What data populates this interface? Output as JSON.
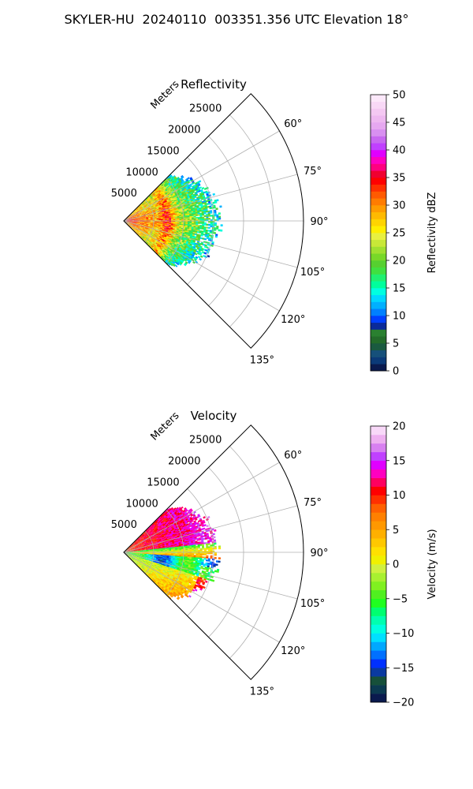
{
  "figure_title": "SKYLER-HU  20240110  003351.356 UTC Elevation 18°",
  "chart_data": [
    {
      "type": "heatmap",
      "projection": "polar-sector",
      "title": "Reflectivity",
      "radial_label": "Meters",
      "range_ticks": [
        "5000",
        "10000",
        "15000",
        "20000",
        "25000"
      ],
      "range_values": [
        5000,
        10000,
        15000,
        20000,
        25000
      ],
      "range_max": 30000,
      "azimuth_ticks": [
        "60°",
        "75°",
        "90°",
        "105°",
        "120°",
        "135°"
      ],
      "azimuth_values": [
        60,
        75,
        90,
        105,
        120,
        135
      ],
      "azimuth_range": [
        45,
        135
      ],
      "grid": true,
      "data_extent_m": 16500,
      "colorbar": {
        "label": "Reflectivity dBZ",
        "ticks": [
          "0",
          "5",
          "10",
          "15",
          "20",
          "25",
          "30",
          "35",
          "40",
          "45",
          "50"
        ],
        "vmin": 0,
        "vmax": 50,
        "levels": 40,
        "colors": [
          "#0a1a4e",
          "#0b3a78",
          "#16507a",
          "#1a5a40",
          "#236b2a",
          "#2a8030",
          "#0a2a9a",
          "#0040ff",
          "#0080ff",
          "#00b0ff",
          "#00d8ff",
          "#00ffe0",
          "#00ff9c",
          "#20f070",
          "#40e040",
          "#56d030",
          "#78d828",
          "#a0e030",
          "#c8e838",
          "#e8f040",
          "#ffee00",
          "#ffd400",
          "#ffba00",
          "#ff9c00",
          "#ff7c00",
          "#ff5a00",
          "#ff3000",
          "#ff0000",
          "#f00030",
          "#ff0080",
          "#ff00c0",
          "#e000ff",
          "#c040ff",
          "#c868f0",
          "#d890f0",
          "#e6a8f0",
          "#eeb8f0",
          "#f4c8f2",
          "#f8d8f6",
          "#fce8fa"
        ]
      }
    },
    {
      "type": "heatmap",
      "projection": "polar-sector",
      "title": "Velocity",
      "radial_label": "Meters",
      "range_ticks": [
        "5000",
        "10000",
        "15000",
        "20000",
        "25000"
      ],
      "range_values": [
        5000,
        10000,
        15000,
        20000,
        25000
      ],
      "range_max": 30000,
      "azimuth_ticks": [
        "60°",
        "75°",
        "90°",
        "105°",
        "120°",
        "135°"
      ],
      "azimuth_values": [
        60,
        75,
        90,
        105,
        120,
        135
      ],
      "azimuth_range": [
        45,
        135
      ],
      "grid": true,
      "data_extent_m": 16500,
      "colorbar": {
        "label": "Velocity (m/s)",
        "ticks": [
          "−20",
          "−15",
          "−10",
          "−5",
          "0",
          "5",
          "10",
          "15",
          "20"
        ],
        "vmin": -20,
        "vmax": 20,
        "levels": 32,
        "colors": [
          "#0a1a4e",
          "#0b3a50",
          "#16503a",
          "#0a3aa0",
          "#0030ff",
          "#0070ff",
          "#00a8ff",
          "#00e0ff",
          "#00ffe0",
          "#00ffb0",
          "#00ff70",
          "#20ff20",
          "#50f020",
          "#80f020",
          "#a8f030",
          "#d0f040",
          "#f0f000",
          "#ffe000",
          "#ffc800",
          "#ffb000",
          "#ff9800",
          "#ff8000",
          "#ff6000",
          "#ff3000",
          "#ff0000",
          "#ff0060",
          "#ff00c0",
          "#e000ff",
          "#c040ff",
          "#d880f0",
          "#eeb0f0",
          "#f8d8f8"
        ]
      }
    }
  ]
}
